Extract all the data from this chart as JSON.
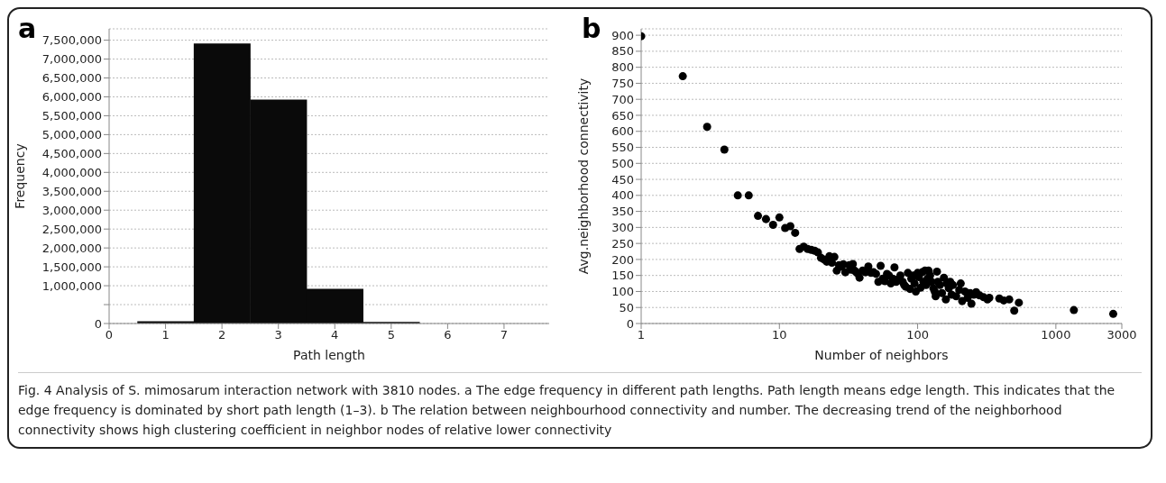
{
  "chart_data": [
    {
      "type": "histogram",
      "title": "a",
      "xlabel": "Path length",
      "ylabel": "Frequency",
      "bins": [
        0.5,
        1.5,
        2.5,
        3.5,
        4.5,
        5.5
      ],
      "values": [
        60000,
        7410000,
        5930000,
        920000,
        40000
      ],
      "color": "#0a0a0a",
      "xlim": [
        0,
        7.8
      ],
      "xticks": [
        0,
        1,
        2,
        3,
        4,
        5,
        6,
        7
      ],
      "ylim": [
        0,
        7800000
      ],
      "yticks": [
        0,
        {
          "value": 500000,
          "label": null
        },
        {
          "value": 1000000,
          "label": "1,000,000"
        },
        {
          "value": 1500000,
          "label": "1,500,000"
        },
        {
          "value": 2000000,
          "label": "2,000,000"
        },
        {
          "value": 2500000,
          "label": "2,500,000"
        },
        {
          "value": 3000000,
          "label": "3,000,000"
        },
        {
          "value": 3500000,
          "label": "3,500,000"
        },
        {
          "value": 4000000,
          "label": "4,000,000"
        },
        {
          "value": 4500000,
          "label": "4,500,000"
        },
        {
          "value": 5000000,
          "label": "5,000,000"
        },
        {
          "value": 5500000,
          "label": "5,500,000"
        },
        {
          "value": 6000000,
          "label": "6,000,000"
        },
        {
          "value": 6500000,
          "label": "6,500,000"
        },
        {
          "value": 7000000,
          "label": "7,000,000"
        },
        {
          "value": 7500000,
          "label": "7,500,000"
        }
      ],
      "grid": "y",
      "annotations": [
        "Fig. 4 Analysis of S. mimosarum interaction network with 3810 nodes. a The edge frequency in different path lengths. Path length means edge length. This indicates that the edge frequency is dominated by short path length (1–3). b The relation between neighbourhood connectivity and number. The decreasing trend of the neighborhood connectivity shows high clustering coefficient in neighbor nodes of relative lower connectivity"
      ]
    },
    {
      "type": "scatter",
      "title": "b",
      "xlabel": "Number of neighbors",
      "ylabel": "Avg.neighborhood connectivity",
      "x": [
        1,
        2,
        3,
        4,
        5,
        6,
        7,
        8,
        9,
        10,
        11,
        12,
        13,
        14,
        15,
        16,
        17,
        18,
        19,
        20,
        21,
        22,
        23,
        24,
        25,
        26,
        27,
        28,
        29,
        30,
        32,
        33,
        34,
        35,
        36,
        37,
        38,
        40,
        42,
        44,
        46,
        48,
        50,
        52,
        54,
        56,
        58,
        60,
        62,
        64,
        66,
        68,
        70,
        72,
        75,
        78,
        80,
        82,
        85,
        88,
        90,
        93,
        95,
        97,
        100,
        102,
        105,
        108,
        110,
        113,
        115,
        118,
        120,
        123,
        126,
        130,
        133,
        135,
        138,
        140,
        145,
        150,
        155,
        160,
        162,
        168,
        172,
        176,
        180,
        190,
        200,
        205,
        210,
        220,
        230,
        240,
        245,
        255,
        265,
        280,
        300,
        320,
        330,
        390,
        420,
        460,
        500,
        540,
        1350,
        2600
      ],
      "values": [
        897,
        772,
        614,
        543,
        400,
        400,
        336,
        326,
        308,
        331,
        298,
        304,
        283,
        233,
        240,
        233,
        230,
        227,
        222,
        205,
        200,
        193,
        210,
        190,
        208,
        165,
        182,
        178,
        185,
        160,
        182,
        168,
        186,
        165,
        160,
        155,
        143,
        165,
        160,
        178,
        158,
        160,
        155,
        130,
        180,
        140,
        132,
        155,
        150,
        125,
        140,
        175,
        130,
        138,
        150,
        130,
        120,
        115,
        158,
        108,
        140,
        150,
        125,
        100,
        158,
        145,
        112,
        160,
        130,
        165,
        120,
        140,
        165,
        150,
        130,
        110,
        100,
        85,
        162,
        130,
        120,
        95,
        143,
        75,
        125,
        110,
        130,
        90,
        120,
        85,
        105,
        125,
        70,
        100,
        80,
        95,
        62,
        90,
        98,
        88,
        82,
        75,
        80,
        78,
        72,
        75,
        40,
        65,
        42,
        30
      ],
      "color": "#000000",
      "marker": "circle",
      "log": "x",
      "xlim": [
        1,
        3000
      ],
      "xticks": [
        1,
        10,
        100,
        1000,
        3000
      ],
      "ylim": [
        0,
        920
      ],
      "yticks": [
        0,
        50,
        100,
        150,
        200,
        250,
        300,
        350,
        400,
        450,
        500,
        550,
        600,
        650,
        700,
        750,
        800,
        850,
        900
      ],
      "grid": "y"
    }
  ]
}
